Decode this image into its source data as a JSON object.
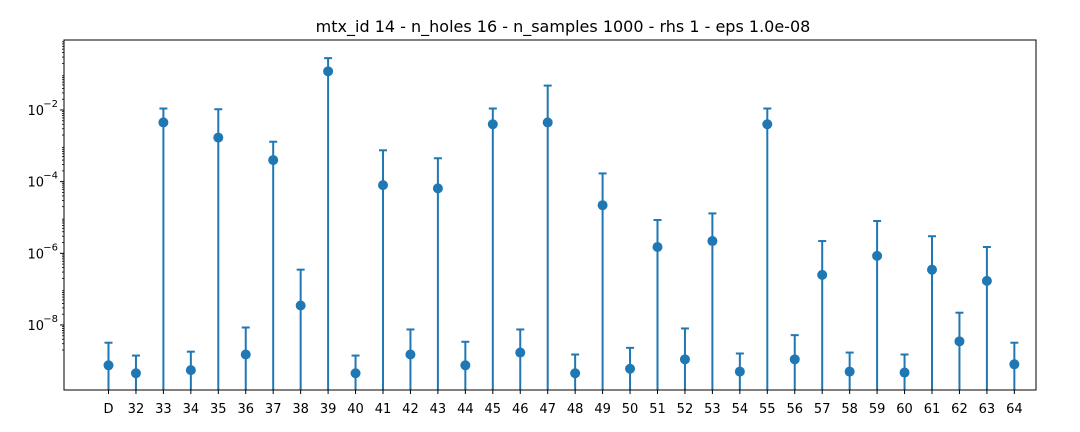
{
  "chart_data": {
    "type": "scatter",
    "title": "mtx_id 14 - n_holes 16 - n_samples 1000 - rhs 1 - eps 1.0e-08",
    "xlabel": "",
    "ylabel": "",
    "y_scale": "log",
    "ylim": [
      1.5e-10,
      1.0
    ],
    "grid": false,
    "legend": "none",
    "colors": {
      "marker": "#1f77b4"
    },
    "categories": [
      "D",
      "32",
      "33",
      "34",
      "35",
      "36",
      "37",
      "38",
      "39",
      "40",
      "41",
      "42",
      "43",
      "44",
      "45",
      "46",
      "47",
      "48",
      "49",
      "50",
      "51",
      "52",
      "53",
      "54",
      "55",
      "56",
      "57",
      "58",
      "59",
      "60",
      "61",
      "62",
      "63",
      "64"
    ],
    "values": [
      7.5e-10,
      4.5e-10,
      0.0045,
      5.5e-10,
      0.0017,
      1.5e-09,
      0.0004,
      3.5e-08,
      0.12,
      4.5e-10,
      8e-05,
      1.5e-09,
      6.5e-05,
      7.5e-10,
      0.004,
      1.7e-09,
      0.0045,
      4.5e-10,
      2.2e-05,
      6e-10,
      1.5e-06,
      1.1e-09,
      2.2e-06,
      5e-10,
      0.004,
      1.1e-09,
      2.5e-07,
      5e-10,
      8.5e-07,
      4.7e-10,
      3.5e-07,
      3.5e-09,
      1.7e-07,
      8e-10
    ],
    "upper_error": [
      3.2e-09,
      1.4e-09,
      0.011,
      1.8e-09,
      0.0105,
      8.5e-09,
      0.0013,
      3.5e-07,
      0.28,
      1.4e-09,
      0.00075,
      7.5e-09,
      0.00045,
      3.4e-09,
      0.011,
      7.5e-09,
      0.048,
      1.5e-09,
      0.00017,
      2.3e-09,
      8.5e-06,
      8e-09,
      1.3e-05,
      1.6e-09,
      0.011,
      5.2e-09,
      2.2e-06,
      1.7e-09,
      8e-06,
      1.5e-09,
      3e-06,
      2.2e-08,
      1.5e-06,
      3.2e-09
    ],
    "y_ticks": [
      {
        "value": 1e-08,
        "base": "10",
        "exp": "−8"
      },
      {
        "value": 1e-06,
        "base": "10",
        "exp": "−6"
      },
      {
        "value": 0.0001,
        "base": "10",
        "exp": "−4"
      },
      {
        "value": 0.01,
        "base": "10",
        "exp": "−2"
      }
    ]
  }
}
